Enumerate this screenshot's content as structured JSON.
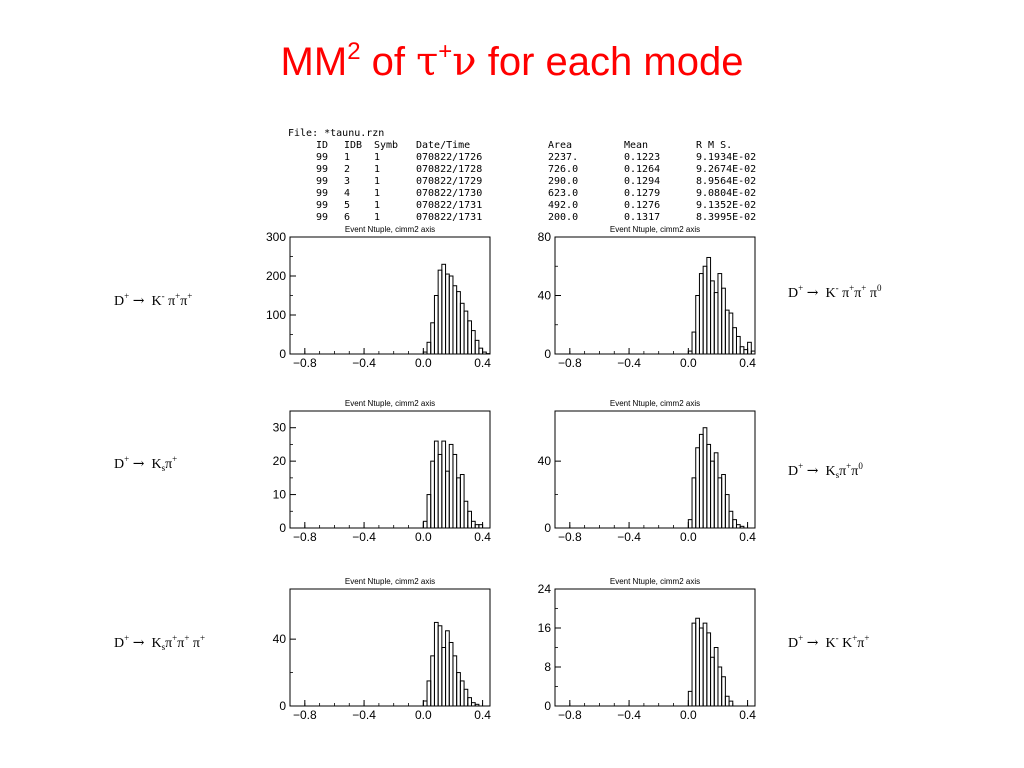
{
  "slide": {
    "title_main": "MM",
    "title_sup": "2",
    "title_of": " of ",
    "title_tau": "τ",
    "title_plus": "+",
    "title_nu": "ν",
    "title_rest": " for each mode"
  },
  "info_table": {
    "file": "File: *taunu.rzn",
    "headers": [
      "ID",
      "IDB",
      "Symb",
      "Date/Time",
      "Area",
      "Mean",
      "R M S."
    ],
    "rows": [
      [
        "99",
        "1",
        "1",
        "070822/1726",
        "2237.",
        "0.1223",
        "9.1934E-02"
      ],
      [
        "99",
        "2",
        "1",
        "070822/1728",
        "726.0",
        "0.1264",
        "9.2674E-02"
      ],
      [
        "99",
        "3",
        "1",
        "070822/1729",
        "290.0",
        "0.1294",
        "8.9564E-02"
      ],
      [
        "99",
        "4",
        "1",
        "070822/1730",
        "623.0",
        "0.1279",
        "9.0804E-02"
      ],
      [
        "99",
        "5",
        "1",
        "070822/1731",
        "492.0",
        "0.1276",
        "9.1352E-02"
      ],
      [
        "99",
        "6",
        "1",
        "070822/1731",
        "200.0",
        "0.1317",
        "8.3995E-02"
      ]
    ]
  },
  "mode_labels": [
    {
      "D": "D",
      "plus": "+",
      "arrow": "→",
      "parts": [
        {
          "t": "K"
        },
        {
          "t": "-",
          "s": "sup"
        },
        {
          "t": " π"
        },
        {
          "t": "+",
          "s": "sup"
        },
        {
          "t": "π"
        },
        {
          "t": "+",
          "s": "sup"
        }
      ]
    },
    {
      "D": "D",
      "plus": "+",
      "arrow": "→",
      "parts": [
        {
          "t": "K"
        },
        {
          "t": "-",
          "s": "sup"
        },
        {
          "t": " π"
        },
        {
          "t": "+",
          "s": "sup"
        },
        {
          "t": "π"
        },
        {
          "t": "+",
          "s": "sup"
        },
        {
          "t": " π"
        },
        {
          "t": "0",
          "s": "sup"
        }
      ]
    },
    {
      "D": "D",
      "plus": "+",
      "arrow": "→",
      "parts": [
        {
          "t": "K"
        },
        {
          "t": "s",
          "s": "sub"
        },
        {
          "t": "π"
        },
        {
          "t": "+",
          "s": "sup"
        }
      ]
    },
    {
      "D": "D",
      "plus": "+",
      "arrow": "→",
      "parts": [
        {
          "t": "K"
        },
        {
          "t": "s",
          "s": "sub"
        },
        {
          "t": "π"
        },
        {
          "t": "+",
          "s": "sup"
        },
        {
          "t": "π"
        },
        {
          "t": "0",
          "s": "sup"
        }
      ]
    },
    {
      "D": "D",
      "plus": "+",
      "arrow": "→",
      "parts": [
        {
          "t": "K"
        },
        {
          "t": "s",
          "s": "sub"
        },
        {
          "t": "π"
        },
        {
          "t": "+",
          "s": "sup"
        },
        {
          "t": "π"
        },
        {
          "t": "+",
          "s": "sup"
        },
        {
          "t": " π"
        },
        {
          "t": "+",
          "s": "sup"
        }
      ]
    },
    {
      "D": "D",
      "plus": "+",
      "arrow": "→",
      "parts": [
        {
          "t": "K"
        },
        {
          "t": "-",
          "s": "sup"
        },
        {
          "t": " K"
        },
        {
          "t": "+",
          "s": "sup"
        },
        {
          "t": "π"
        },
        {
          "t": "+",
          "s": "sup"
        }
      ]
    }
  ],
  "chart_data": [
    {
      "type": "bar",
      "histogram": true,
      "title": "Event Ntuple, cimm2 axis",
      "xlim": [
        -0.9,
        0.45
      ],
      "ylim": [
        0,
        300
      ],
      "x_ticks": [
        "-0.8",
        "-0.4",
        "0.0",
        "0.4"
      ],
      "x_tick_values": [
        -0.8,
        -0.4,
        0.0,
        0.4
      ],
      "y_ticks": [
        "0",
        "100",
        "200",
        "300"
      ],
      "y_tick_values": [
        0,
        100,
        200,
        300
      ],
      "bin_start": 0.0,
      "bin_width": 0.025,
      "values": [
        5,
        30,
        80,
        150,
        215,
        230,
        205,
        200,
        175,
        160,
        130,
        110,
        85,
        60,
        35,
        15,
        5,
        1
      ]
    },
    {
      "type": "bar",
      "histogram": true,
      "title": "Event Ntuple, cimm2 axis",
      "xlim": [
        -0.9,
        0.45
      ],
      "ylim": [
        0,
        80
      ],
      "x_ticks": [
        "-0.8",
        "-0.4",
        "0.0",
        "0.4"
      ],
      "x_tick_values": [
        -0.8,
        -0.4,
        0.0,
        0.4
      ],
      "y_ticks": [
        "0",
        "40",
        "80"
      ],
      "y_tick_values": [
        0,
        40,
        80
      ],
      "bin_start": 0.0,
      "bin_width": 0.025,
      "values": [
        2,
        15,
        40,
        55,
        60,
        66,
        50,
        42,
        55,
        45,
        30,
        28,
        18,
        12,
        5,
        3,
        8,
        2
      ]
    },
    {
      "type": "bar",
      "histogram": true,
      "title": "Event Ntuple, cimm2 axis",
      "xlim": [
        -0.9,
        0.45
      ],
      "ylim": [
        0,
        35
      ],
      "x_ticks": [
        "-0.8",
        "-0.4",
        "0.0",
        "0.4"
      ],
      "x_tick_values": [
        -0.8,
        -0.4,
        0.0,
        0.4
      ],
      "y_ticks": [
        "0",
        "10",
        "20",
        "30"
      ],
      "y_tick_values": [
        0,
        10,
        20,
        30
      ],
      "bin_start": 0.0,
      "bin_width": 0.025,
      "values": [
        2,
        10,
        20,
        26,
        22,
        26,
        17,
        25,
        22,
        15,
        16,
        8,
        5,
        2,
        1,
        1
      ]
    },
    {
      "type": "bar",
      "histogram": true,
      "title": "Event Ntuple, cimm2 axis",
      "xlim": [
        -0.9,
        0.45
      ],
      "ylim": [
        0,
        70
      ],
      "x_ticks": [
        "-0.8",
        "-0.4",
        "0.0",
        "0.4"
      ],
      "x_tick_values": [
        -0.8,
        -0.4,
        0.0,
        0.4
      ],
      "y_ticks": [
        "0",
        "40"
      ],
      "y_tick_values": [
        0,
        40
      ],
      "bin_start": 0.0,
      "bin_width": 0.025,
      "values": [
        5,
        30,
        48,
        56,
        60,
        50,
        40,
        45,
        30,
        32,
        20,
        10,
        5,
        2,
        1
      ]
    },
    {
      "type": "bar",
      "histogram": true,
      "title": "Event Ntuple, cimm2 axis",
      "xlim": [
        -0.9,
        0.45
      ],
      "ylim": [
        0,
        70
      ],
      "x_ticks": [
        "-0.8",
        "-0.4",
        "0.0",
        "0.4"
      ],
      "x_tick_values": [
        -0.8,
        -0.4,
        0.0,
        0.4
      ],
      "y_ticks": [
        "0",
        "40"
      ],
      "y_tick_values": [
        0,
        40
      ],
      "bin_start": 0.0,
      "bin_width": 0.025,
      "values": [
        3,
        15,
        30,
        50,
        48,
        35,
        45,
        38,
        30,
        20,
        15,
        10,
        5,
        2,
        1
      ]
    },
    {
      "type": "bar",
      "histogram": true,
      "title": "Event Ntuple, cimm2 axis",
      "xlim": [
        -0.9,
        0.45
      ],
      "ylim": [
        0,
        24
      ],
      "x_ticks": [
        "-0.8",
        "-0.4",
        "0.0",
        "0.4"
      ],
      "x_tick_values": [
        -0.8,
        -0.4,
        0.0,
        0.4
      ],
      "y_ticks": [
        "0",
        "8",
        "16",
        "24"
      ],
      "y_tick_values": [
        0,
        8,
        16,
        24
      ],
      "bin_start": 0.0,
      "bin_width": 0.025,
      "values": [
        3,
        17,
        18,
        16,
        17,
        15,
        10,
        12,
        8,
        6,
        2,
        1
      ]
    }
  ]
}
